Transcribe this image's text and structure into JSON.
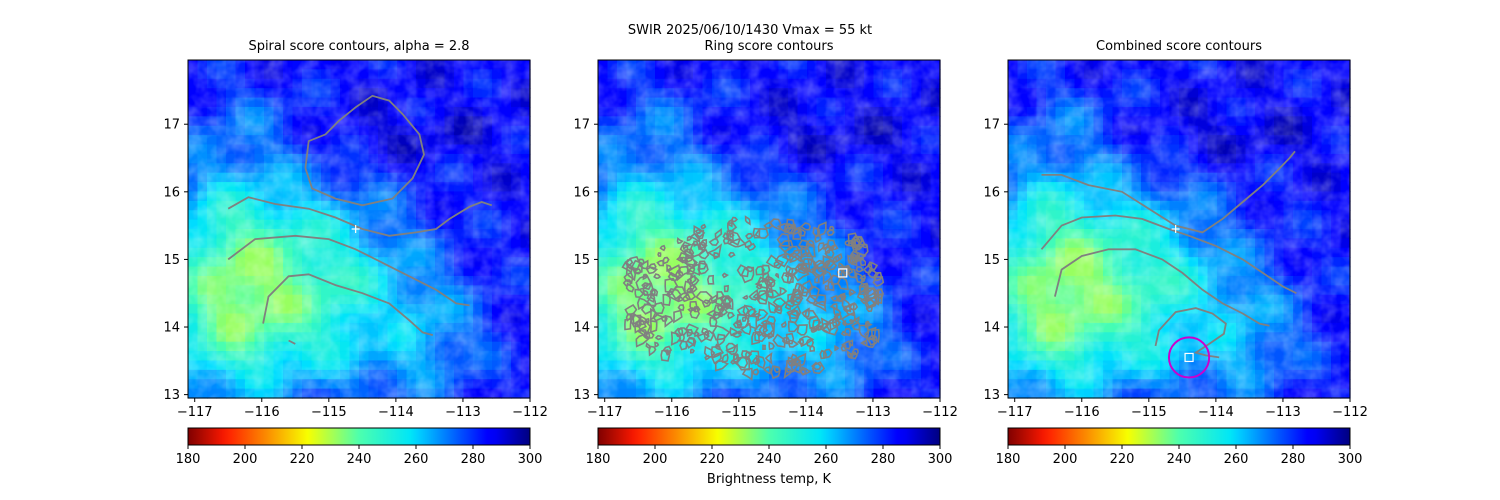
{
  "figure": {
    "suptitle_line1": "SWIR  2025/06/10/1430    Vmax = 55 kt",
    "colorbar_label": "Brightness temp, K"
  },
  "palette": {
    "colormap": "jet_r",
    "contour_color": "#808080",
    "marker_color": "#ffffff",
    "circle_color": "#cc00cc"
  },
  "chart_data": [
    {
      "type": "heatmap",
      "title": "Spiral score contours, alpha =  2.8",
      "xlim": [
        -117.1,
        -112
      ],
      "ylim": [
        12.95,
        17.95
      ],
      "xticks": [
        -117,
        -116,
        -115,
        -114,
        -113,
        -112
      ],
      "yticks": [
        13,
        14,
        15,
        16,
        17
      ],
      "xtick_labels": [
        "−117",
        "−116",
        "−115",
        "−114",
        "−113",
        "−112"
      ],
      "ytick_labels": [
        "13",
        "14",
        "15",
        "16",
        "17"
      ],
      "markers": [
        {
          "shape": "plus",
          "lon": -114.6,
          "lat": 15.45
        }
      ],
      "contours": [
        [
          [
            -115.35,
            16.35
          ],
          [
            -115.3,
            16.75
          ],
          [
            -115.05,
            16.85
          ],
          [
            -114.85,
            17.05
          ],
          [
            -114.6,
            17.25
          ],
          [
            -114.35,
            17.42
          ],
          [
            -114.1,
            17.35
          ],
          [
            -113.9,
            17.15
          ],
          [
            -113.65,
            16.85
          ],
          [
            -113.58,
            16.55
          ],
          [
            -113.75,
            16.2
          ],
          [
            -114.05,
            15.9
          ],
          [
            -114.5,
            15.8
          ],
          [
            -114.9,
            15.9
          ],
          [
            -115.25,
            16.05
          ],
          [
            -115.35,
            16.35
          ]
        ],
        [
          [
            -116.5,
            15.75
          ],
          [
            -116.2,
            15.92
          ],
          [
            -115.8,
            15.82
          ],
          [
            -115.3,
            15.75
          ],
          [
            -114.9,
            15.62
          ],
          [
            -114.5,
            15.45
          ],
          [
            -114.1,
            15.35
          ],
          [
            -113.7,
            15.4
          ],
          [
            -113.4,
            15.45
          ],
          [
            -113.2,
            15.6
          ],
          [
            -112.9,
            15.78
          ],
          [
            -112.72,
            15.85
          ],
          [
            -112.57,
            15.8
          ]
        ],
        [
          [
            -116.5,
            15.0
          ],
          [
            -116.1,
            15.3
          ],
          [
            -115.5,
            15.35
          ],
          [
            -115.0,
            15.3
          ],
          [
            -114.6,
            15.15
          ],
          [
            -114.2,
            14.95
          ],
          [
            -113.8,
            14.75
          ],
          [
            -113.4,
            14.55
          ],
          [
            -113.1,
            14.35
          ],
          [
            -112.9,
            14.32
          ]
        ],
        [
          [
            -115.98,
            14.05
          ],
          [
            -115.9,
            14.45
          ],
          [
            -115.6,
            14.75
          ],
          [
            -115.3,
            14.78
          ],
          [
            -114.9,
            14.62
          ],
          [
            -114.5,
            14.5
          ],
          [
            -114.1,
            14.35
          ],
          [
            -113.8,
            14.1
          ],
          [
            -113.6,
            13.92
          ],
          [
            -113.45,
            13.88
          ]
        ],
        [
          [
            -115.6,
            13.8
          ],
          [
            -115.5,
            13.75
          ]
        ]
      ]
    },
    {
      "type": "heatmap",
      "title": "Ring score contours",
      "xlim": [
        -117.1,
        -112
      ],
      "ylim": [
        12.95,
        17.95
      ],
      "xticks": [
        -117,
        -116,
        -115,
        -114,
        -113,
        -112
      ],
      "yticks": [
        13,
        14,
        15,
        16,
        17
      ],
      "xtick_labels": [
        "−117",
        "−116",
        "−115",
        "−114",
        "−113",
        "−112"
      ],
      "ytick_labels": [
        "13",
        "14",
        "15",
        "16",
        "17"
      ],
      "markers": [
        {
          "shape": "square",
          "lon": -113.45,
          "lat": 14.8
        }
      ],
      "contour_region": {
        "lon": [
          -116.7,
          -112.9
        ],
        "lat": [
          13.3,
          15.6
        ],
        "description": "dense speckled contours"
      },
      "contours": []
    },
    {
      "type": "heatmap",
      "title": "Combined score contours",
      "xlim": [
        -117.1,
        -112
      ],
      "ylim": [
        12.95,
        17.95
      ],
      "xticks": [
        -117,
        -116,
        -115,
        -114,
        -113,
        -112
      ],
      "yticks": [
        13,
        14,
        15,
        16,
        17
      ],
      "xtick_labels": [
        "−117",
        "−116",
        "−115",
        "−114",
        "−113",
        "−112"
      ],
      "ytick_labels": [
        "13",
        "14",
        "15",
        "16",
        "17"
      ],
      "markers": [
        {
          "shape": "plus",
          "lon": -114.6,
          "lat": 15.45
        },
        {
          "shape": "square",
          "lon": -114.4,
          "lat": 13.55
        },
        {
          "shape": "circle",
          "lon": -114.4,
          "lat": 13.55,
          "radius_deg": 0.3
        }
      ],
      "contours": [
        [
          [
            -116.6,
            16.25
          ],
          [
            -116.3,
            16.25
          ],
          [
            -115.9,
            16.1
          ],
          [
            -115.4,
            16.0
          ],
          [
            -115.0,
            15.75
          ],
          [
            -114.6,
            15.5
          ],
          [
            -114.2,
            15.4
          ],
          [
            -113.9,
            15.6
          ],
          [
            -113.6,
            15.85
          ],
          [
            -113.3,
            16.1
          ],
          [
            -113.05,
            16.35
          ],
          [
            -112.9,
            16.5
          ],
          [
            -112.82,
            16.6
          ]
        ],
        [
          [
            -116.6,
            15.15
          ],
          [
            -116.3,
            15.5
          ],
          [
            -116.0,
            15.62
          ],
          [
            -115.5,
            15.65
          ],
          [
            -115.1,
            15.6
          ],
          [
            -114.7,
            15.45
          ],
          [
            -114.4,
            15.35
          ],
          [
            -114.0,
            15.2
          ],
          [
            -113.6,
            15.0
          ],
          [
            -113.3,
            14.8
          ],
          [
            -113.0,
            14.6
          ],
          [
            -112.8,
            14.5
          ]
        ],
        [
          [
            -116.4,
            14.45
          ],
          [
            -116.3,
            14.85
          ],
          [
            -116.0,
            15.05
          ],
          [
            -115.6,
            15.15
          ],
          [
            -115.2,
            15.15
          ],
          [
            -114.8,
            15.0
          ],
          [
            -114.5,
            14.8
          ],
          [
            -114.2,
            14.55
          ],
          [
            -113.9,
            14.35
          ],
          [
            -113.6,
            14.2
          ],
          [
            -113.35,
            14.05
          ],
          [
            -113.2,
            14.02
          ]
        ],
        [
          [
            -114.9,
            13.72
          ],
          [
            -114.85,
            13.95
          ],
          [
            -114.6,
            14.22
          ],
          [
            -114.3,
            14.28
          ],
          [
            -114.05,
            14.2
          ],
          [
            -113.85,
            14.05
          ],
          [
            -113.88,
            13.9
          ],
          [
            -114.1,
            13.75
          ],
          [
            -114.3,
            13.62
          ],
          [
            -114.15,
            13.58
          ],
          [
            -113.95,
            13.55
          ]
        ]
      ]
    }
  ],
  "colorbar": {
    "cmin": 180,
    "cmax": 300,
    "ticks": [
      180,
      200,
      220,
      240,
      260,
      280,
      300
    ],
    "tick_labels": [
      "180",
      "200",
      "220",
      "240",
      "260",
      "280",
      "300"
    ]
  }
}
